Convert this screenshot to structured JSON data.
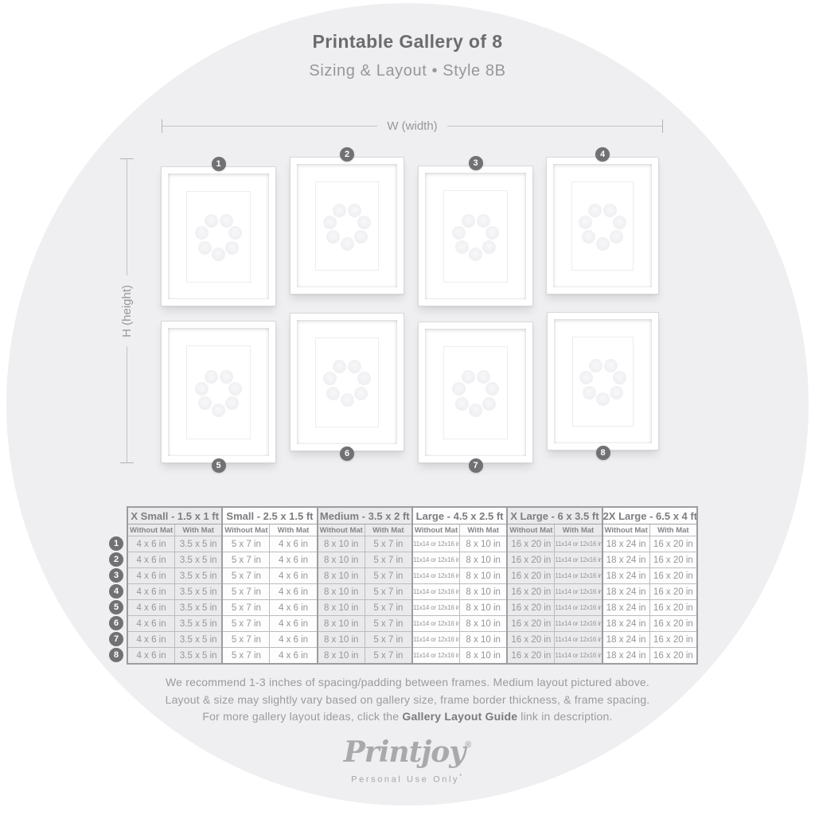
{
  "title": "Printable Gallery of 8",
  "subtitle": "Sizing & Layout • Style 8B",
  "dimensions": {
    "width_label": "W (width)",
    "height_label": "H (height)"
  },
  "frames": [
    {
      "label": "1"
    },
    {
      "label": "2"
    },
    {
      "label": "3"
    },
    {
      "label": "4"
    },
    {
      "label": "5"
    },
    {
      "label": "6"
    },
    {
      "label": "7"
    },
    {
      "label": "8"
    }
  ],
  "table": {
    "groups": [
      {
        "label": "X Small - 1.5 x 1 ft"
      },
      {
        "label": "Small - 2.5 x 1.5 ft"
      },
      {
        "label": "Medium - 3.5 x 2 ft"
      },
      {
        "label": "Large - 4.5 x 2.5 ft"
      },
      {
        "label": "X Large - 6 x 3.5 ft"
      },
      {
        "label": "2X Large - 6.5 x 4 ft"
      }
    ],
    "subheaders": [
      "Without Mat",
      "With Mat"
    ],
    "row_labels": [
      "1",
      "2",
      "3",
      "4",
      "5",
      "6",
      "7",
      "8"
    ],
    "rows": [
      [
        "4 x 6 in",
        "3.5 x 5 in",
        "5 x 7 in",
        "4 x 6 in",
        "8 x 10 in",
        "5 x 7 in",
        "11x14 or 12x16 in",
        "8 x 10 in",
        "16 x 20 in",
        "11x14 or 12x16 in",
        "18 x 24 in",
        "16 x 20 in"
      ],
      [
        "4 x 6 in",
        "3.5 x 5 in",
        "5 x 7 in",
        "4 x 6 in",
        "8 x 10 in",
        "5 x 7 in",
        "11x14 or 12x16 in",
        "8 x 10 in",
        "16 x 20 in",
        "11x14 or 12x16 in",
        "18 x 24 in",
        "16 x 20 in"
      ],
      [
        "4 x 6 in",
        "3.5 x 5 in",
        "5 x 7 in",
        "4 x 6 in",
        "8 x 10 in",
        "5 x 7 in",
        "11x14 or 12x16 in",
        "8 x 10 in",
        "16 x 20 in",
        "11x14 or 12x16 in",
        "18 x 24 in",
        "16 x 20 in"
      ],
      [
        "4 x 6 in",
        "3.5 x 5 in",
        "5 x 7 in",
        "4 x 6 in",
        "8 x 10 in",
        "5 x 7 in",
        "11x14 or 12x16 in",
        "8 x 10 in",
        "16 x 20 in",
        "11x14 or 12x16 in",
        "18 x 24 in",
        "16 x 20 in"
      ],
      [
        "4 x 6 in",
        "3.5 x 5 in",
        "5 x 7 in",
        "4 x 6 in",
        "8 x 10 in",
        "5 x 7 in",
        "11x14 or 12x16 in",
        "8 x 10 in",
        "16 x 20 in",
        "11x14 or 12x16 in",
        "18 x 24 in",
        "16 x 20 in"
      ],
      [
        "4 x 6 in",
        "3.5 x 5 in",
        "5 x 7 in",
        "4 x 6 in",
        "8 x 10 in",
        "5 x 7 in",
        "11x14 or 12x16 in",
        "8 x 10 in",
        "16 x 20 in",
        "11x14 or 12x16 in",
        "18 x 24 in",
        "16 x 20 in"
      ],
      [
        "4 x 6 in",
        "3.5 x 5 in",
        "5 x 7 in",
        "4 x 6 in",
        "8 x 10 in",
        "5 x 7 in",
        "11x14 or 12x16 in",
        "8 x 10 in",
        "16 x 20 in",
        "11x14 or 12x16 in",
        "18 x 24 in",
        "16 x 20 in"
      ],
      [
        "4 x 6 in",
        "3.5 x 5 in",
        "5 x 7 in",
        "4 x 6 in",
        "8 x 10 in",
        "5 x 7 in",
        "11x14 or 12x16 in",
        "8 x 10 in",
        "16 x 20 in",
        "11x14 or 12x16 in",
        "18 x 24 in",
        "16 x 20 in"
      ]
    ]
  },
  "notes": {
    "line1": "We recommend 1-3 inches of spacing/padding between frames. Medium layout pictured above.",
    "line2": "Layout & size may slightly vary based on gallery size, frame border thickness, & frame spacing.",
    "line3_prefix": "For more gallery layout ideas, click the ",
    "line3_bold": "Gallery Layout Guide",
    "line3_suffix": " link in description."
  },
  "logo": {
    "name": "Printjoy",
    "registered_mark": "®",
    "tagline": "Personal Use Only",
    "tagline_mark": "*"
  },
  "colors": {
    "background_circle": "#efeff1",
    "badge": "#717174",
    "table_shaded_cell": "#eaeaec",
    "text_primary": "#6c6c6f",
    "text_secondary": "#97979a"
  }
}
